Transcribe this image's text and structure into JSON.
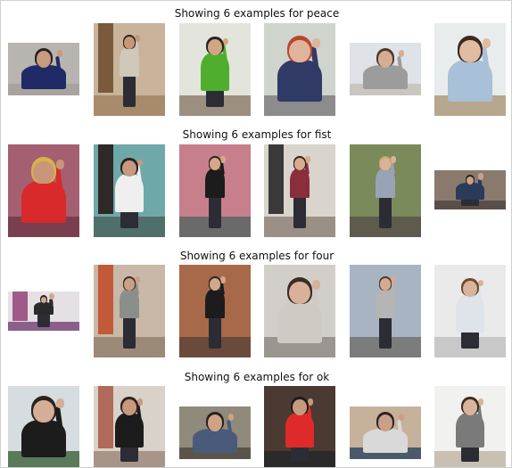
{
  "sections": [
    {
      "title": "Showing 6 examples for peace",
      "images": [
        {
          "wall": "#b8b4b0",
          "floor": "#a8a39e",
          "shirt": "#1f2a66",
          "skin": "#c99a7c",
          "hair": "#222222",
          "pose": "close"
        },
        {
          "wall": "#c9b39a",
          "floor": "#a88b6c",
          "shirt": "#cfc8bb",
          "skin": "#c8977a",
          "hair": "#2a2220",
          "pose": "full",
          "door": "#7a5a3c"
        },
        {
          "wall": "#e3e4dc",
          "floor": "#9d8f80",
          "shirt": "#4fae2e",
          "skin": "#d2a584",
          "hair": "#2a2220",
          "pose": "mid"
        },
        {
          "wall": "#cfd4cc",
          "floor": "#8c8c8c",
          "shirt": "#2f3a66",
          "skin": "#e0b49c",
          "hair": "#b7472f",
          "pose": "close"
        },
        {
          "wall": "#dfe2e6",
          "floor": "#c9c6c0",
          "shirt": "#9c9c9c",
          "skin": "#d6ad93",
          "hair": "#4a3a2e",
          "pose": "close"
        },
        {
          "wall": "#e9ecec",
          "floor": "#b7a78e",
          "shirt": "#a8c0d8",
          "skin": "#e2bba3",
          "hair": "#3b2a20",
          "pose": "close"
        }
      ]
    },
    {
      "title": "Showing 6 examples for fist",
      "images": [
        {
          "wall": "#a45f71",
          "floor": "#7a3f4f",
          "shirt": "#d82a2a",
          "skin": "#c9967a",
          "hair": "#d8b24a",
          "pose": "close"
        },
        {
          "wall": "#6fa8a8",
          "floor": "#4f6f6a",
          "shirt": "#efefef",
          "skin": "#c9997e",
          "hair": "#2a2220",
          "pose": "mid",
          "door": "#2d2a28"
        },
        {
          "wall": "#c77f8b",
          "floor": "#6a6a6a",
          "shirt": "#1c1c1c",
          "skin": "#d4a88a",
          "hair": "#2a2220",
          "pose": "full"
        },
        {
          "wall": "#d9d4cc",
          "floor": "#9b9085",
          "shirt": "#8a2e3e",
          "skin": "#d6ab8e",
          "hair": "#2a2220",
          "pose": "full",
          "door": "#3a3a3a"
        },
        {
          "wall": "#7a8a5a",
          "floor": "#5f5a4e",
          "shirt": "#9aa2b6",
          "skin": "#d9b299",
          "hair": "#c9a36a",
          "pose": "full"
        },
        {
          "wall": "#8a7a6e",
          "floor": "#5a4f48",
          "shirt": "#2a3a5a",
          "skin": "#c9a08a",
          "hair": "#222222",
          "pose": "mid"
        }
      ]
    },
    {
      "title": "Showing 6 examples for four",
      "images": [
        {
          "wall": "#e5e0e3",
          "floor": "#8a5f8a",
          "shirt": "#2a2a2a",
          "skin": "#d2a98e",
          "hair": "#2a2220",
          "pose": "full",
          "door": "#a05a8a"
        },
        {
          "wall": "#c9b8a8",
          "floor": "#9c8a78",
          "shirt": "#8a8f8a",
          "skin": "#caa088",
          "hair": "#3a2e22",
          "pose": "full",
          "door": "#c25a3a"
        },
        {
          "wall": "#a8684a",
          "floor": "#6a4a3a",
          "shirt": "#1c1c1c",
          "skin": "#d2a88c",
          "hair": "#2a2220",
          "pose": "full"
        },
        {
          "wall": "#d2cfca",
          "floor": "#9a958f",
          "shirt": "#cfcac4",
          "skin": "#d9b09a",
          "hair": "#3a2e22",
          "pose": "close"
        },
        {
          "wall": "#a8b4c2",
          "floor": "#7c7c7c",
          "shirt": "#b5b5b5",
          "skin": "#d4ab92",
          "hair": "#4a3a2e",
          "pose": "full"
        },
        {
          "wall": "#eaeaea",
          "floor": "#c8c8c8",
          "shirt": "#dfe3ea",
          "skin": "#d9b39a",
          "hair": "#6a4a32",
          "pose": "mid"
        }
      ]
    },
    {
      "title": "Showing 6 examples for ok",
      "images": [
        {
          "wall": "#d5dde0",
          "floor": "#5a7a5a",
          "shirt": "#1c1c1c",
          "skin": "#d6ad95",
          "hair": "#2a2220",
          "pose": "close"
        },
        {
          "wall": "#d9d2c8",
          "floor": "#a8958a",
          "shirt": "#1c1c1c",
          "skin": "#c9997e",
          "hair": "#2a2220",
          "pose": "mid",
          "door": "#b06a5a"
        },
        {
          "wall": "#8f8a7a",
          "floor": "#5a544a",
          "shirt": "#4a5a7a",
          "skin": "#cfa286",
          "hair": "#222222",
          "pose": "close"
        },
        {
          "wall": "#4a3a32",
          "floor": "#2a2a2a",
          "shirt": "#e02a2a",
          "skin": "#c69a7c",
          "hair": "#1c1c1c",
          "pose": "mid"
        },
        {
          "wall": "#c6b29a",
          "floor": "#4a5a6a",
          "shirt": "#d9d9d9",
          "skin": "#caa088",
          "hair": "#2a2220",
          "pose": "close"
        },
        {
          "wall": "#f1f1ef",
          "floor": "#c8c0b2",
          "shirt": "#7a7a7a",
          "skin": "#d9b39a",
          "hair": "#3a2e22",
          "pose": "mid"
        }
      ]
    }
  ]
}
